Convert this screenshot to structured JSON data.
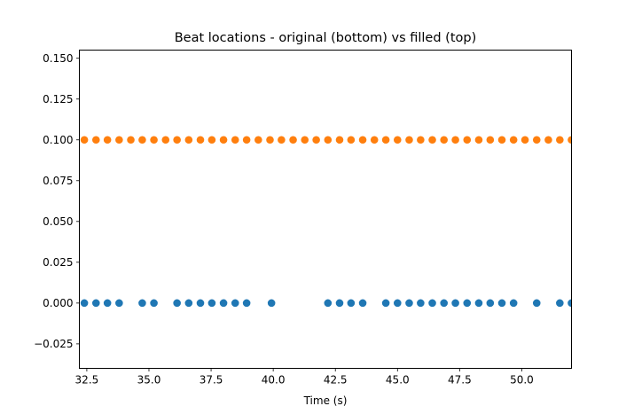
{
  "chart_data": {
    "type": "scatter",
    "title": "Beat locations - original (bottom) vs filled (top)",
    "xlabel": "Time (s)",
    "ylabel": "",
    "xlim": [
      32.2,
      52.0
    ],
    "ylim": [
      -0.04,
      0.155
    ],
    "grid": false,
    "x_ticks": [
      "32.5",
      "35.0",
      "37.5",
      "40.0",
      "42.5",
      "45.0",
      "47.5",
      "50.0"
    ],
    "y_ticks": [
      "−0.025",
      "0.000",
      "0.025",
      "0.050",
      "0.075",
      "0.100",
      "0.125",
      "0.150"
    ],
    "series": [
      {
        "color": "#1f77b4",
        "y": 0.0,
        "x": [
          32.4,
          32.87,
          33.33,
          33.8,
          34.73,
          35.2,
          36.13,
          36.6,
          37.07,
          37.53,
          38.0,
          38.47,
          38.93,
          39.93,
          42.2,
          42.67,
          43.13,
          43.6,
          44.53,
          45.0,
          45.47,
          45.93,
          46.4,
          46.87,
          47.33,
          47.8,
          48.27,
          48.73,
          49.2,
          49.67,
          50.6,
          51.53,
          52.0
        ]
      },
      {
        "color": "#ff7f0e",
        "y": 0.1,
        "x": [
          32.4,
          32.87,
          33.33,
          33.8,
          34.27,
          34.73,
          35.2,
          35.67,
          36.13,
          36.6,
          37.07,
          37.53,
          38.0,
          38.47,
          38.93,
          39.4,
          39.87,
          40.33,
          40.8,
          41.27,
          41.73,
          42.2,
          42.67,
          43.13,
          43.6,
          44.07,
          44.53,
          45.0,
          45.47,
          45.93,
          46.4,
          46.87,
          47.33,
          47.8,
          48.27,
          48.73,
          49.2,
          49.67,
          50.13,
          50.6,
          51.07,
          51.53,
          52.0
        ]
      }
    ]
  }
}
